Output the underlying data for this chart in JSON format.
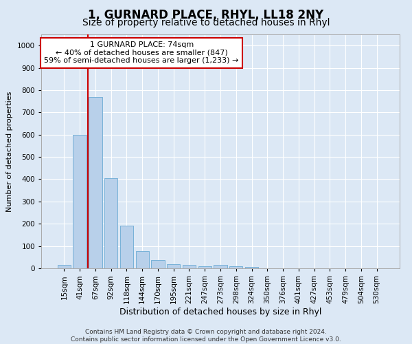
{
  "title": "1, GURNARD PLACE, RHYL, LL18 2NY",
  "subtitle": "Size of property relative to detached houses in Rhyl",
  "xlabel": "Distribution of detached houses by size in Rhyl",
  "ylabel": "Number of detached properties",
  "bar_color": "#b8d0ea",
  "bar_edge_color": "#6aaad4",
  "axes_bg_color": "#dce8f5",
  "fig_bg_color": "#dce8f5",
  "grid_color": "#ffffff",
  "vline_color": "#cc0000",
  "vline_x_index": 2,
  "annotation_text": "1 GURNARD PLACE: 74sqm\n← 40% of detached houses are smaller (847)\n59% of semi-detached houses are larger (1,233) →",
  "annotation_box_facecolor": "#ffffff",
  "annotation_box_edgecolor": "#cc0000",
  "categories": [
    "15sqm",
    "41sqm",
    "67sqm",
    "92sqm",
    "118sqm",
    "144sqm",
    "170sqm",
    "195sqm",
    "221sqm",
    "247sqm",
    "273sqm",
    "298sqm",
    "324sqm",
    "350sqm",
    "376sqm",
    "401sqm",
    "427sqm",
    "453sqm",
    "479sqm",
    "504sqm",
    "530sqm"
  ],
  "values": [
    15,
    600,
    770,
    405,
    190,
    78,
    38,
    18,
    16,
    10,
    14,
    8,
    7,
    0,
    0,
    0,
    0,
    0,
    0,
    0,
    0
  ],
  "ylim": [
    0,
    1050
  ],
  "yticks": [
    0,
    100,
    200,
    300,
    400,
    500,
    600,
    700,
    800,
    900,
    1000
  ],
  "footer": "Contains HM Land Registry data © Crown copyright and database right 2024.\nContains public sector information licensed under the Open Government Licence v3.0.",
  "title_fontsize": 12,
  "subtitle_fontsize": 10,
  "xlabel_fontsize": 9,
  "ylabel_fontsize": 8,
  "tick_fontsize": 7.5,
  "annotation_fontsize": 8,
  "footer_fontsize": 6.5
}
